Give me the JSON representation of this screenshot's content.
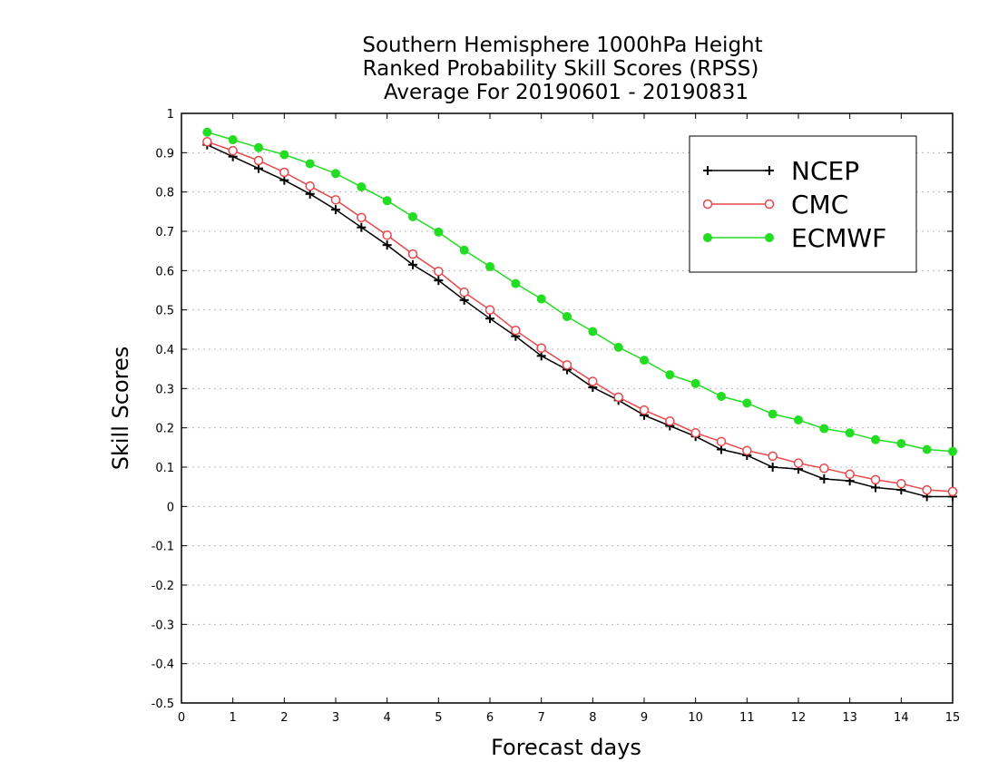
{
  "chart_data": {
    "type": "line",
    "title": [
      "Southern Hemisphere 1000hPa Height",
      "Ranked Probability Skill Scores (RPSS)",
      "Average For 20190601 - 20190831"
    ],
    "xlabel": "Forecast days",
    "ylabel": "Skill Scores",
    "xlim": [
      0,
      15
    ],
    "ylim": [
      -0.5,
      1
    ],
    "xticks": [
      0,
      1,
      2,
      3,
      4,
      5,
      6,
      7,
      8,
      9,
      10,
      11,
      12,
      13,
      14,
      15
    ],
    "yticks": [
      -0.5,
      -0.4,
      -0.3,
      -0.2,
      -0.1,
      0,
      0.1,
      0.2,
      0.3,
      0.4,
      0.5,
      0.6,
      0.7,
      0.8,
      0.9,
      1
    ],
    "ytick_labels": [
      "-0.5",
      "-0.4",
      "-0.3",
      "-0.2",
      "-0.1",
      "0",
      "0.1",
      "0.2",
      "0.3",
      "0.4",
      "0.5",
      "0.6",
      "0.7",
      "0.8",
      "0.9",
      "1"
    ],
    "grid": "horizontal dotted",
    "legend_position": "top-right",
    "x": [
      0.5,
      1,
      1.5,
      2,
      2.5,
      3,
      3.5,
      4,
      4.5,
      5,
      5.5,
      6,
      6.5,
      7,
      7.5,
      8,
      8.5,
      9,
      9.5,
      10,
      10.5,
      11,
      11.5,
      12,
      12.5,
      13,
      13.5,
      14,
      14.5,
      15
    ],
    "series": [
      {
        "name": "NCEP",
        "color": "#000000",
        "marker": "plus",
        "values": [
          0.92,
          0.89,
          0.86,
          0.83,
          0.795,
          0.755,
          0.71,
          0.665,
          0.615,
          0.575,
          0.525,
          0.478,
          0.433,
          0.383,
          0.348,
          0.303,
          0.27,
          0.232,
          0.205,
          0.178,
          0.145,
          0.13,
          0.1,
          0.095,
          0.07,
          0.065,
          0.048,
          0.042,
          0.025,
          0.025
        ]
      },
      {
        "name": "CMC",
        "color": "#e8474b",
        "marker": "open-circle",
        "values": [
          0.928,
          0.905,
          0.88,
          0.85,
          0.815,
          0.78,
          0.735,
          0.69,
          0.642,
          0.598,
          0.545,
          0.5,
          0.448,
          0.403,
          0.36,
          0.318,
          0.278,
          0.245,
          0.217,
          0.187,
          0.165,
          0.142,
          0.128,
          0.11,
          0.097,
          0.082,
          0.068,
          0.058,
          0.042,
          0.038
        ]
      },
      {
        "name": "ECMWF",
        "color": "#22dd22",
        "marker": "filled-circle",
        "values": [
          0.952,
          0.933,
          0.913,
          0.895,
          0.872,
          0.847,
          0.813,
          0.778,
          0.737,
          0.698,
          0.652,
          0.61,
          0.567,
          0.528,
          0.483,
          0.445,
          0.405,
          0.372,
          0.335,
          0.313,
          0.28,
          0.263,
          0.235,
          0.22,
          0.198,
          0.187,
          0.17,
          0.16,
          0.145,
          0.14
        ]
      }
    ]
  }
}
